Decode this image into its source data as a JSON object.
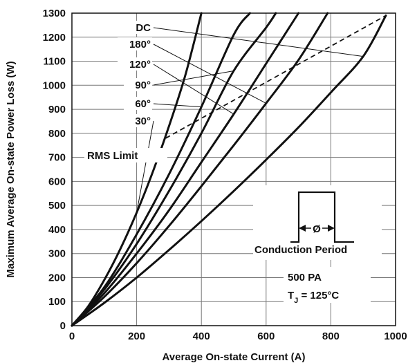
{
  "chart_data": {
    "type": "line",
    "xlabel": "Average On-state Current (A)",
    "ylabel": "Maximum Average On-state Power Loss (W)",
    "xlim": [
      0,
      1000
    ],
    "ylim": [
      0,
      1300
    ],
    "xticks": [
      0,
      200,
      400,
      600,
      800,
      1000
    ],
    "yticks": [
      0,
      100,
      200,
      300,
      400,
      500,
      600,
      700,
      800,
      900,
      1000,
      1100,
      1200,
      1300
    ],
    "grid": true,
    "series": [
      {
        "name": "30°",
        "x": [
          0,
          50,
          100,
          150,
          200,
          250,
          300,
          350,
          400
        ],
        "y": [
          0,
          80,
          190,
          320,
          470,
          640,
          830,
          1040,
          1300
        ]
      },
      {
        "name": "60°",
        "x": [
          0,
          100,
          200,
          300,
          400,
          500,
          550
        ],
        "y": [
          0,
          160,
          380,
          630,
          910,
          1210,
          1300
        ]
      },
      {
        "name": "90°",
        "x": [
          0,
          100,
          200,
          300,
          400,
          500,
          600,
          630
        ],
        "y": [
          0,
          150,
          340,
          560,
          800,
          1060,
          1240,
          1300
        ]
      },
      {
        "name": "120°",
        "x": [
          0,
          100,
          200,
          300,
          400,
          500,
          600,
          700
        ],
        "y": [
          0,
          135,
          300,
          480,
          680,
          880,
          1090,
          1300
        ]
      },
      {
        "name": "180°",
        "x": [
          0,
          100,
          200,
          300,
          400,
          500,
          600,
          700,
          790
        ],
        "y": [
          0,
          120,
          260,
          415,
          580,
          750,
          925,
          1105,
          1300
        ]
      },
      {
        "name": "DC",
        "x": [
          0,
          100,
          200,
          300,
          400,
          500,
          600,
          700,
          800,
          900,
          970
        ],
        "y": [
          0,
          95,
          200,
          315,
          435,
          560,
          690,
          825,
          970,
          1120,
          1290
        ]
      },
      {
        "name": "RMS Limit",
        "x": [
          290,
          970
        ],
        "y": [
          780,
          1290
        ]
      }
    ],
    "curve_labels": [
      "DC",
      "180°",
      "120°",
      "90°",
      "60°",
      "30°"
    ],
    "annotations": {
      "rms_limit": "RMS Limit",
      "conduction_period": "Conduction Period",
      "conduction_symbol": "Ø",
      "device": "500 PA",
      "tj_prefix": "T",
      "tj_sub": "J",
      "tj_value": " = 125°C"
    },
    "colors": {
      "line": "#111111",
      "grid": "#777777",
      "background": "#ffffff"
    }
  }
}
